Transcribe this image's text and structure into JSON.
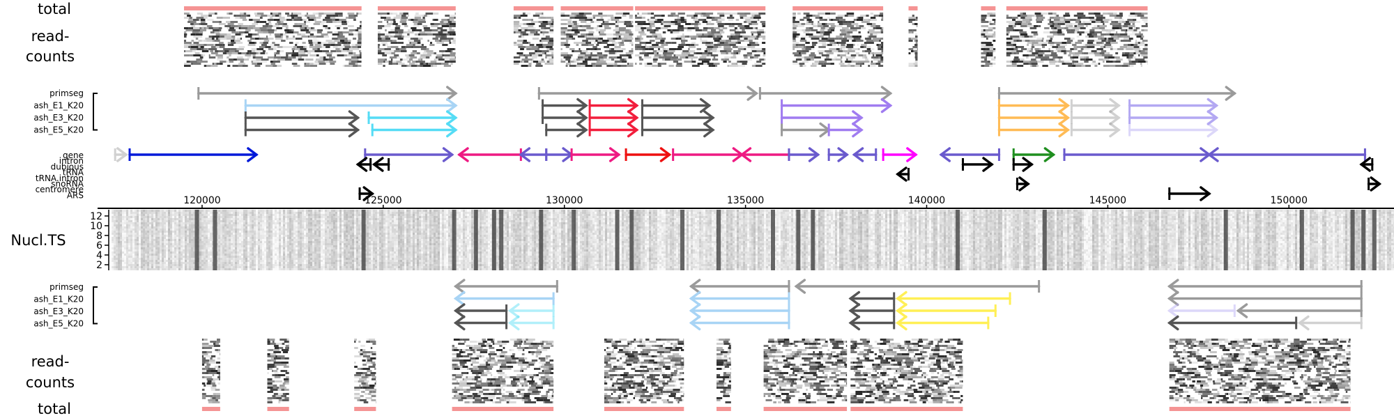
{
  "chart_data": {
    "type": "genome-browser",
    "x_axis": {
      "ticks": [
        120000,
        125000,
        130000,
        135000,
        140000,
        145000,
        150000
      ],
      "range": [
        117500,
        152900
      ]
    },
    "panel_labels": {
      "total": "total",
      "read_counts_line1": "read-",
      "read_counts_line2": "counts",
      "nucl_ts": "Nucl.TS"
    },
    "track_labels": [
      "primseg",
      "ash_E1_K20",
      "ash_E3_K20",
      "ash_E5_K20"
    ],
    "feature_types": [
      "gene",
      "intron",
      "dubious",
      "tRNA",
      "tRNA.intron",
      "snoRNA",
      "centromere",
      "ARS"
    ],
    "nucl_ts_yticks": [
      2,
      4,
      6,
      8,
      10,
      12
    ],
    "colors": {
      "gray": "#9a9a9a",
      "dark": "#555555",
      "light_blue": "#a8d4f5",
      "cyan": "#55dcf5",
      "red": "#f21e3c",
      "purple": "#a07cf0",
      "orange": "#ffbb55",
      "lavender": "#b3a8f2",
      "yellow": "#ffef55",
      "gene_blue": "#0019d9",
      "gene_slate": "#6a5acd",
      "gene_pink": "#ee1a82",
      "gene_red": "#ee1010",
      "gene_magenta": "#ff00ff",
      "gene_green": "#1f8f1f",
      "black": "#000000",
      "total_bar": "#f05a5a"
    },
    "top_strand": {
      "coverage_blocks": [
        [
          119500,
          124400
        ],
        [
          124850,
          127000
        ],
        [
          128600,
          129700
        ],
        [
          129900,
          131900
        ],
        [
          131950,
          135550
        ],
        [
          136300,
          138800
        ],
        [
          139500,
          139750
        ],
        [
          141500,
          141900
        ],
        [
          142200,
          146100
        ]
      ],
      "segments": [
        {
          "track": 0,
          "segs": [
            {
              "s": 119900,
              "e": 127000,
              "c": "gray",
              "l": 0
            },
            {
              "s": 129300,
              "e": 135300,
              "c": "gray",
              "l": 0
            },
            {
              "s": 135400,
              "e": 139000,
              "c": "gray",
              "l": 0
            },
            {
              "s": 142000,
              "e": 148500,
              "c": "gray",
              "l": 0
            }
          ]
        },
        {
          "track": 1,
          "segs": [
            {
              "s": 121200,
              "e": 127000,
              "c": "light_blue",
              "l": 0
            },
            {
              "s": 129400,
              "e": 130600,
              "c": "dark",
              "l": 0
            },
            {
              "s": 130700,
              "e": 132000,
              "c": "red",
              "l": 0
            },
            {
              "s": 132150,
              "e": 134000,
              "c": "dark",
              "l": 0
            },
            {
              "s": 136000,
              "e": 139000,
              "c": "purple",
              "l": 0
            },
            {
              "s": 142000,
              "e": 143900,
              "c": "orange",
              "l": 0
            },
            {
              "s": 144000,
              "e": 145300,
              "c": "gray",
              "l": 1
            },
            {
              "s": 145600,
              "e": 148000,
              "c": "lavender",
              "l": 0
            }
          ]
        },
        {
          "track": 2,
          "segs": [
            {
              "s": 121200,
              "e": 124300,
              "c": "dark",
              "l": 0
            },
            {
              "s": 124600,
              "e": 127000,
              "c": "cyan",
              "l": 0
            },
            {
              "s": 129400,
              "e": 130600,
              "c": "dark",
              "l": 0
            },
            {
              "s": 130700,
              "e": 132000,
              "c": "red",
              "l": 0
            },
            {
              "s": 132150,
              "e": 134100,
              "c": "dark",
              "l": 0
            },
            {
              "s": 136000,
              "e": 138200,
              "c": "purple",
              "l": 0
            },
            {
              "s": 142000,
              "e": 143900,
              "c": "orange",
              "l": 0
            },
            {
              "s": 144000,
              "e": 145300,
              "c": "gray",
              "l": 1
            },
            {
              "s": 145600,
              "e": 148000,
              "c": "lavender",
              "l": 0
            }
          ]
        },
        {
          "track": 3,
          "segs": [
            {
              "s": 121200,
              "e": 124300,
              "c": "dark",
              "l": 0
            },
            {
              "s": 124700,
              "e": 127000,
              "c": "cyan",
              "l": 0
            },
            {
              "s": 129500,
              "e": 130600,
              "c": "dark",
              "l": 0
            },
            {
              "s": 130700,
              "e": 132000,
              "c": "red",
              "l": 0
            },
            {
              "s": 132150,
              "e": 134100,
              "c": "dark",
              "l": 0
            },
            {
              "s": 136000,
              "e": 137300,
              "c": "gray",
              "l": 0
            },
            {
              "s": 137300,
              "e": 138200,
              "c": "purple",
              "l": 0
            },
            {
              "s": 142000,
              "e": 143900,
              "c": "orange",
              "l": 0
            },
            {
              "s": 144000,
              "e": 145300,
              "c": "gray",
              "l": 1
            },
            {
              "s": 145600,
              "e": 148000,
              "c": "lavender",
              "l": 1
            }
          ]
        }
      ]
    },
    "genes": [
      {
        "s": 117600,
        "e": 117900,
        "row": 0,
        "strand": "+",
        "c": "gray",
        "light": true
      },
      {
        "s": 118000,
        "e": 121500,
        "row": 0,
        "strand": "+",
        "c": "gene_blue"
      },
      {
        "s": 124500,
        "e": 126900,
        "row": 0,
        "strand": "+",
        "c": "gene_slate"
      },
      {
        "s": 127100,
        "e": 128800,
        "row": 0,
        "strand": "-",
        "c": "gene_pink"
      },
      {
        "s": 128800,
        "e": 129500,
        "row": 0,
        "strand": "-",
        "c": "gene_slate"
      },
      {
        "s": 129500,
        "e": 130200,
        "row": 0,
        "strand": "+",
        "c": "gene_slate"
      },
      {
        "s": 130200,
        "e": 131500,
        "row": 0,
        "strand": "+",
        "c": "gene_pink"
      },
      {
        "s": 131700,
        "e": 132900,
        "row": 0,
        "strand": "+",
        "c": "gene_red"
      },
      {
        "s": 133000,
        "e": 134900,
        "row": 0,
        "strand": "+",
        "c": "gene_pink"
      },
      {
        "s": 134900,
        "e": 136200,
        "row": 0,
        "strand": "-",
        "c": "gene_pink"
      },
      {
        "s": 136200,
        "e": 137000,
        "row": 0,
        "strand": "+",
        "c": "gene_slate"
      },
      {
        "s": 137300,
        "e": 137800,
        "row": 0,
        "strand": "+",
        "c": "gene_slate"
      },
      {
        "s": 138000,
        "e": 138600,
        "row": 0,
        "strand": "-",
        "c": "gene_slate"
      },
      {
        "s": 138800,
        "e": 139700,
        "row": 0,
        "strand": "+",
        "c": "gene_magenta"
      },
      {
        "s": 140400,
        "e": 142000,
        "row": 0,
        "strand": "-",
        "c": "gene_slate"
      },
      {
        "s": 142400,
        "e": 143500,
        "row": 0,
        "strand": "+",
        "c": "gene_green"
      },
      {
        "s": 143800,
        "e": 147800,
        "row": 0,
        "strand": "+",
        "c": "gene_slate"
      },
      {
        "s": 147800,
        "e": 152100,
        "row": 0,
        "strand": "-",
        "c": "gene_slate"
      },
      {
        "s": 124300,
        "e": 124650,
        "row": 1,
        "strand": "-",
        "c": "black"
      },
      {
        "s": 124750,
        "e": 125150,
        "row": 1,
        "strand": "-",
        "c": "black"
      },
      {
        "s": 142400,
        "e": 142900,
        "row": 1,
        "strand": "+",
        "c": "black"
      },
      {
        "s": 141000,
        "e": 141800,
        "row": 1,
        "strand": "+",
        "c": "black"
      },
      {
        "s": 152000,
        "e": 152300,
        "row": 1,
        "strand": "-",
        "c": "black"
      },
      {
        "s": 139200,
        "e": 139500,
        "row": 2,
        "strand": "-",
        "c": "black"
      },
      {
        "s": 142500,
        "e": 142800,
        "row": 3,
        "strand": "+",
        "c": "black"
      },
      {
        "s": 152200,
        "e": 152500,
        "row": 3,
        "strand": "+",
        "c": "black"
      },
      {
        "s": 124350,
        "e": 124700,
        "row": 4,
        "strand": "+",
        "c": "black"
      },
      {
        "s": 146700,
        "e": 147800,
        "row": 4,
        "strand": "+",
        "c": "black"
      }
    ],
    "nucl_dark_positions": [
      119800,
      120300,
      124400,
      126900,
      127500,
      128000,
      128200,
      129300,
      130200,
      131400,
      131800,
      133200,
      134200,
      135700,
      136400,
      136800,
      140800,
      143200,
      148200,
      150300,
      151700,
      152000,
      152300
    ],
    "bottom_strand": {
      "coverage_blocks": [
        [
          120000,
          120500
        ],
        [
          121800,
          122400
        ],
        [
          124200,
          124800
        ],
        [
          126900,
          129700
        ],
        [
          131100,
          133300
        ],
        [
          134200,
          134600
        ],
        [
          135500,
          137800
        ],
        [
          137900,
          141000
        ],
        [
          146700,
          151700
        ]
      ],
      "segments": [
        {
          "track": 0,
          "segs": [
            {
              "s": 127000,
              "e": 129800,
              "c": "gray",
              "l": 0
            },
            {
              "s": 133500,
              "e": 136200,
              "c": "gray",
              "l": 0
            },
            {
              "s": 136400,
              "e": 143100,
              "c": "gray",
              "l": 0
            },
            {
              "s": 146700,
              "e": 152000,
              "c": "gray",
              "l": 0
            }
          ]
        },
        {
          "track": 1,
          "segs": [
            {
              "s": 127000,
              "e": 129700,
              "c": "light_blue",
              "l": 0
            },
            {
              "s": 133500,
              "e": 136200,
              "c": "light_blue",
              "l": 0
            },
            {
              "s": 137900,
              "e": 139100,
              "c": "dark",
              "l": 0
            },
            {
              "s": 139200,
              "e": 142300,
              "c": "yellow",
              "l": 0
            },
            {
              "s": 146700,
              "e": 152000,
              "c": "gray",
              "l": 0
            }
          ]
        },
        {
          "track": 2,
          "segs": [
            {
              "s": 127000,
              "e": 128400,
              "c": "dark",
              "l": 0
            },
            {
              "s": 128500,
              "e": 129700,
              "c": "cyan",
              "l": 1
            },
            {
              "s": 133500,
              "e": 136200,
              "c": "light_blue",
              "l": 0
            },
            {
              "s": 137900,
              "e": 139100,
              "c": "dark",
              "l": 0
            },
            {
              "s": 139200,
              "e": 141900,
              "c": "yellow",
              "l": 0
            },
            {
              "s": 146700,
              "e": 148500,
              "c": "lavender",
              "l": 1
            },
            {
              "s": 148600,
              "e": 152000,
              "c": "gray",
              "l": 0
            }
          ]
        },
        {
          "track": 3,
          "segs": [
            {
              "s": 127000,
              "e": 128400,
              "c": "dark",
              "l": 0
            },
            {
              "s": 128500,
              "e": 129700,
              "c": "cyan",
              "l": 1
            },
            {
              "s": 133500,
              "e": 136200,
              "c": "light_blue",
              "l": 0
            },
            {
              "s": 137900,
              "e": 139100,
              "c": "dark",
              "l": 0
            },
            {
              "s": 139200,
              "e": 141700,
              "c": "yellow",
              "l": 0
            },
            {
              "s": 146700,
              "e": 150200,
              "c": "dark",
              "l": 0
            },
            {
              "s": 150300,
              "e": 152000,
              "c": "gray",
              "l": 1
            }
          ]
        }
      ]
    }
  }
}
